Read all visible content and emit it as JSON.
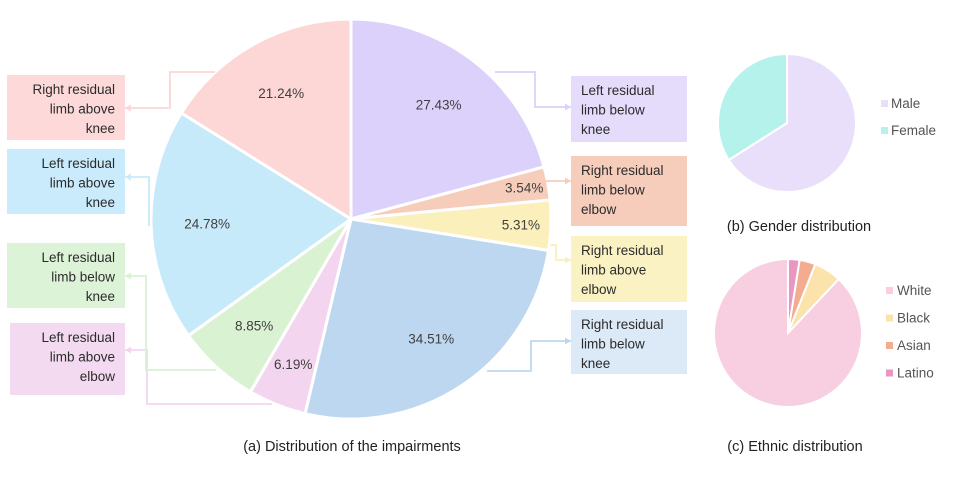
{
  "chart_data": [
    {
      "id": "impairments",
      "type": "pie",
      "caption": "(a) Distribution of the impairments",
      "slices": [
        {
          "label": "Left residual limb below knee",
          "lines": [
            "Left residual",
            "limb below",
            "knee"
          ],
          "value": 27.43,
          "value_label": "27.43%",
          "color": "#dcd1fb",
          "box_color": "#e5dcfc"
        },
        {
          "label": "Right residual limb below elbow",
          "lines": [
            "Right residual",
            "limb below",
            "elbow"
          ],
          "value": 3.54,
          "value_label": "3.54%",
          "color": "#f6cdbb",
          "box_color": "#f6cdbb"
        },
        {
          "label": "Right residual limb above elbow",
          "lines": [
            "Right residual",
            "limb above",
            "elbow"
          ],
          "value": 5.31,
          "value_label": "5.31%",
          "color": "#fbefbb",
          "box_color": "#fbf2c4"
        },
        {
          "label": "Right residual limb below knee",
          "lines": [
            "Right residual",
            "limb below",
            "knee"
          ],
          "value": 34.51,
          "value_label": "34.51%",
          "color": "#bdd7f1",
          "box_color": "#dce9f7"
        },
        {
          "label": "Left residual limb above elbow",
          "lines": [
            "Left residual",
            "limb above",
            "elbow"
          ],
          "value": 6.19,
          "value_label": "6.19%",
          "color": "#f3d5f0",
          "box_color": "#f3daf1"
        },
        {
          "label": "Left residual limb below knee",
          "lines": [
            "Left residual",
            "limb below",
            "knee"
          ],
          "value": 8.85,
          "value_label": "8.85%",
          "color": "#d9f2d2",
          "box_color": "#ddf3d7"
        },
        {
          "label": "Left residual limb above knee",
          "lines": [
            "Left residual",
            "limb above",
            "knee"
          ],
          "value": 24.78,
          "value_label": "24.78%",
          "color": "#c7eafa",
          "box_color": "#c9ebfb"
        },
        {
          "label": "Right residual limb above knee",
          "lines": [
            "Right residual",
            "limb above",
            "knee"
          ],
          "value": 21.24,
          "value_label": "21.24%",
          "color": "#fdd6d6",
          "box_color": "#fdd9d9"
        }
      ]
    },
    {
      "id": "gender",
      "type": "pie",
      "caption": "(b) Gender distribution",
      "slices": [
        {
          "label": "Male",
          "value": 66,
          "color": "#eadffb"
        },
        {
          "label": "Female",
          "value": 34,
          "color": "#b6f2ec"
        }
      ]
    },
    {
      "id": "ethnic",
      "type": "pie",
      "caption": "(c) Ethnic distribution",
      "slices": [
        {
          "label": "White",
          "value": 88,
          "color": "#f7cfe0"
        },
        {
          "label": "Black",
          "value": 6,
          "color": "#fce3ac"
        },
        {
          "label": "Asian",
          "value": 3.5,
          "color": "#f3ac8f"
        },
        {
          "label": "Latino",
          "value": 2.5,
          "color": "#e996c1"
        }
      ]
    }
  ]
}
